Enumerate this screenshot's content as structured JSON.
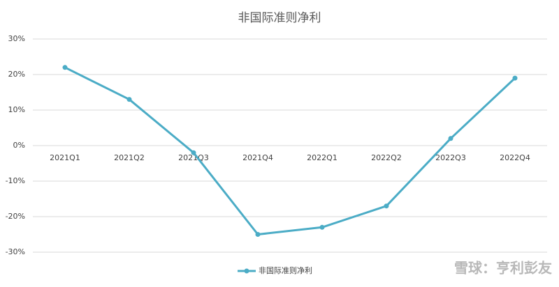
{
  "chart_data": {
    "type": "line",
    "title": "非国际准则净利",
    "categories": [
      "2021Q1",
      "2021Q2",
      "2021Q3",
      "2021Q4",
      "2022Q1",
      "2022Q2",
      "2022Q3",
      "2022Q4"
    ],
    "series": [
      {
        "name": "非国际准则净利",
        "color": "#4bacc6",
        "values": [
          22,
          13,
          -2,
          -25,
          -23,
          -17,
          2,
          19
        ]
      }
    ],
    "ylim": [
      -30,
      30
    ],
    "yticks": [
      {
        "value": -30,
        "label": "-30%"
      },
      {
        "value": -20,
        "label": "-20%"
      },
      {
        "value": -10,
        "label": "-10%"
      },
      {
        "value": 0,
        "label": "0%"
      },
      {
        "value": 10,
        "label": "10%"
      },
      {
        "value": 20,
        "label": "20%"
      },
      {
        "value": 30,
        "label": "30%"
      }
    ],
    "grid": true,
    "legend": "bottom"
  },
  "watermark": "雪球：亨利彭友"
}
